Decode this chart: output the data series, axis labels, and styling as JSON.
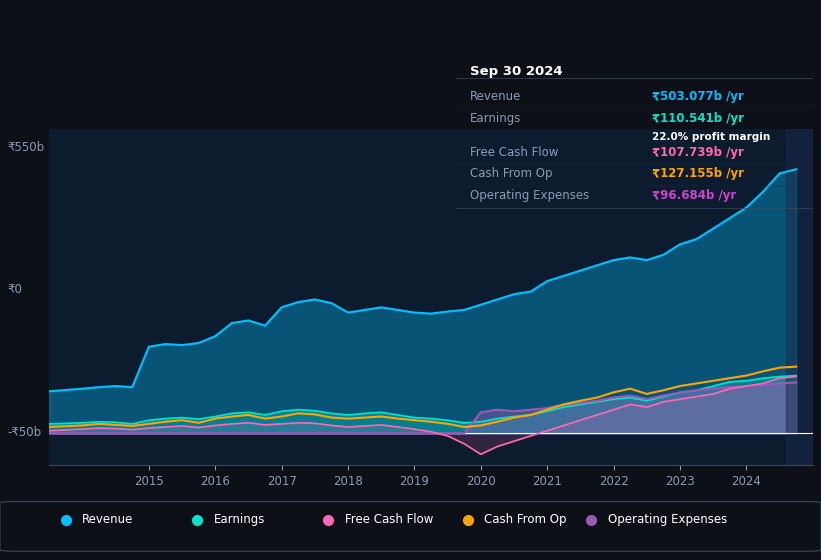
{
  "bg_color": "#0d1117",
  "chart_bg": "#0d1b2e",
  "plot_bg": "#0d1b2e",
  "y_label_550": "₹550b",
  "y_label_0": "₹0",
  "y_label_neg50": "-₹50b",
  "x_ticks": [
    2015,
    2016,
    2017,
    2018,
    2019,
    2020,
    2021,
    2022,
    2023,
    2024
  ],
  "ylim": [
    -60,
    580
  ],
  "xlim": [
    2013.5,
    2025.0
  ],
  "revenue_color": "#00bfff",
  "earnings_color": "#00e5cc",
  "fcf_color": "#ff69b4",
  "cashfromop_color": "#ffa500",
  "opex_color": "#9b59b6",
  "revenue_fill_alpha": 0.35,
  "revenue": {
    "x": [
      2013.5,
      2014.0,
      2014.25,
      2014.5,
      2014.75,
      2015.0,
      2015.25,
      2015.5,
      2015.75,
      2016.0,
      2016.25,
      2016.5,
      2016.75,
      2017.0,
      2017.25,
      2017.5,
      2017.75,
      2018.0,
      2018.25,
      2018.5,
      2018.75,
      2019.0,
      2019.25,
      2019.5,
      2019.75,
      2020.0,
      2020.25,
      2020.5,
      2020.75,
      2021.0,
      2021.25,
      2021.5,
      2021.75,
      2022.0,
      2022.25,
      2022.5,
      2022.75,
      2023.0,
      2023.25,
      2023.5,
      2023.75,
      2024.0,
      2024.25,
      2024.5,
      2024.75
    ],
    "y": [
      80,
      85,
      88,
      90,
      88,
      165,
      170,
      168,
      172,
      185,
      210,
      215,
      205,
      240,
      250,
      255,
      248,
      230,
      235,
      240,
      235,
      230,
      228,
      232,
      235,
      245,
      255,
      265,
      270,
      290,
      300,
      310,
      320,
      330,
      335,
      330,
      340,
      360,
      370,
      390,
      410,
      430,
      460,
      495,
      503
    ]
  },
  "earnings": {
    "x": [
      2013.5,
      2014.0,
      2014.25,
      2014.5,
      2014.75,
      2015.0,
      2015.25,
      2015.5,
      2015.75,
      2016.0,
      2016.25,
      2016.5,
      2016.75,
      2017.0,
      2017.25,
      2017.5,
      2017.75,
      2018.0,
      2018.25,
      2018.5,
      2018.75,
      2019.0,
      2019.25,
      2019.5,
      2019.75,
      2020.0,
      2020.25,
      2020.5,
      2020.75,
      2021.0,
      2021.25,
      2021.5,
      2021.75,
      2022.0,
      2022.25,
      2022.5,
      2022.75,
      2023.0,
      2023.25,
      2023.5,
      2023.75,
      2024.0,
      2024.25,
      2024.5,
      2024.75
    ],
    "y": [
      18,
      20,
      22,
      21,
      18,
      25,
      28,
      30,
      27,
      32,
      38,
      40,
      35,
      42,
      45,
      43,
      38,
      35,
      38,
      40,
      35,
      30,
      28,
      25,
      20,
      22,
      28,
      32,
      35,
      42,
      50,
      55,
      60,
      65,
      68,
      62,
      70,
      78,
      82,
      90,
      98,
      100,
      105,
      108,
      110
    ]
  },
  "fcf": {
    "x": [
      2013.5,
      2014.0,
      2014.25,
      2014.5,
      2014.75,
      2015.0,
      2015.25,
      2015.5,
      2015.75,
      2016.0,
      2016.25,
      2016.5,
      2016.75,
      2017.0,
      2017.25,
      2017.5,
      2017.75,
      2018.0,
      2018.25,
      2018.5,
      2018.75,
      2019.0,
      2019.25,
      2019.5,
      2019.75,
      2020.0,
      2020.25,
      2020.5,
      2020.75,
      2021.0,
      2021.25,
      2021.5,
      2021.75,
      2022.0,
      2022.25,
      2022.5,
      2022.75,
      2023.0,
      2023.25,
      2023.5,
      2023.75,
      2024.0,
      2024.25,
      2024.5,
      2024.75
    ],
    "y": [
      5,
      8,
      10,
      9,
      7,
      10,
      12,
      14,
      11,
      15,
      18,
      20,
      16,
      18,
      20,
      19,
      15,
      12,
      14,
      16,
      12,
      8,
      3,
      -5,
      -20,
      -40,
      -25,
      -15,
      -5,
      5,
      15,
      25,
      35,
      45,
      55,
      50,
      60,
      65,
      70,
      75,
      85,
      90,
      95,
      105,
      108
    ]
  },
  "cashfromop": {
    "x": [
      2013.5,
      2014.0,
      2014.25,
      2014.5,
      2014.75,
      2015.0,
      2015.25,
      2015.5,
      2015.75,
      2016.0,
      2016.25,
      2016.5,
      2016.75,
      2017.0,
      2017.25,
      2017.5,
      2017.75,
      2018.0,
      2018.25,
      2018.5,
      2018.75,
      2019.0,
      2019.25,
      2019.5,
      2019.75,
      2020.0,
      2020.25,
      2020.5,
      2020.75,
      2021.0,
      2021.25,
      2021.5,
      2021.75,
      2022.0,
      2022.25,
      2022.5,
      2022.75,
      2023.0,
      2023.25,
      2023.5,
      2023.75,
      2024.0,
      2024.25,
      2024.5,
      2024.75
    ],
    "y": [
      12,
      15,
      18,
      16,
      14,
      18,
      22,
      25,
      20,
      28,
      32,
      35,
      28,
      32,
      38,
      36,
      30,
      28,
      30,
      32,
      28,
      25,
      22,
      18,
      12,
      15,
      22,
      30,
      35,
      45,
      55,
      62,
      68,
      78,
      85,
      75,
      82,
      90,
      95,
      100,
      105,
      110,
      118,
      125,
      127
    ]
  },
  "opex": {
    "x": [
      2013.5,
      2014.0,
      2014.25,
      2014.5,
      2014.75,
      2015.0,
      2015.25,
      2015.5,
      2015.75,
      2016.0,
      2016.25,
      2016.5,
      2016.75,
      2017.0,
      2017.25,
      2017.5,
      2017.75,
      2018.0,
      2018.25,
      2018.5,
      2018.75,
      2019.0,
      2019.25,
      2019.5,
      2019.75,
      2020.0,
      2020.25,
      2020.5,
      2020.75,
      2021.0,
      2021.25,
      2021.5,
      2021.75,
      2022.0,
      2022.25,
      2022.5,
      2022.75,
      2023.0,
      2023.25,
      2023.5,
      2023.75,
      2024.0,
      2024.25,
      2024.5,
      2024.75
    ],
    "y": [
      0,
      0,
      0,
      0,
      0,
      0,
      0,
      0,
      0,
      0,
      0,
      0,
      0,
      0,
      0,
      0,
      0,
      0,
      0,
      0,
      0,
      0,
      0,
      0,
      0,
      40,
      45,
      42,
      45,
      48,
      55,
      58,
      62,
      68,
      72,
      65,
      72,
      78,
      82,
      85,
      88,
      90,
      92,
      95,
      97
    ]
  },
  "tooltip": {
    "date": "Sep 30 2024",
    "revenue_label": "Revenue",
    "revenue_val": "₹503.077b /yr",
    "earnings_label": "Earnings",
    "earnings_val": "₹110.541b /yr",
    "margin_val": "22.0% profit margin",
    "fcf_label": "Free Cash Flow",
    "fcf_val": "₹107.739b /yr",
    "cashop_label": "Cash From Op",
    "cashop_val": "₹127.155b /yr",
    "opex_label": "Operating Expenses",
    "opex_val": "₹96.684b /yr",
    "revenue_color": "#00bfff",
    "earnings_color": "#00e5cc",
    "fcf_color": "#ff69b4",
    "cashop_color": "#ffa500",
    "opex_color": "#cc44cc"
  },
  "legend": [
    {
      "label": "Revenue",
      "color": "#00bfff"
    },
    {
      "label": "Earnings",
      "color": "#00e5cc"
    },
    {
      "label": "Free Cash Flow",
      "color": "#ff69b4"
    },
    {
      "label": "Cash From Op",
      "color": "#ffa500"
    },
    {
      "label": "Operating Expenses",
      "color": "#9b59b6"
    }
  ]
}
